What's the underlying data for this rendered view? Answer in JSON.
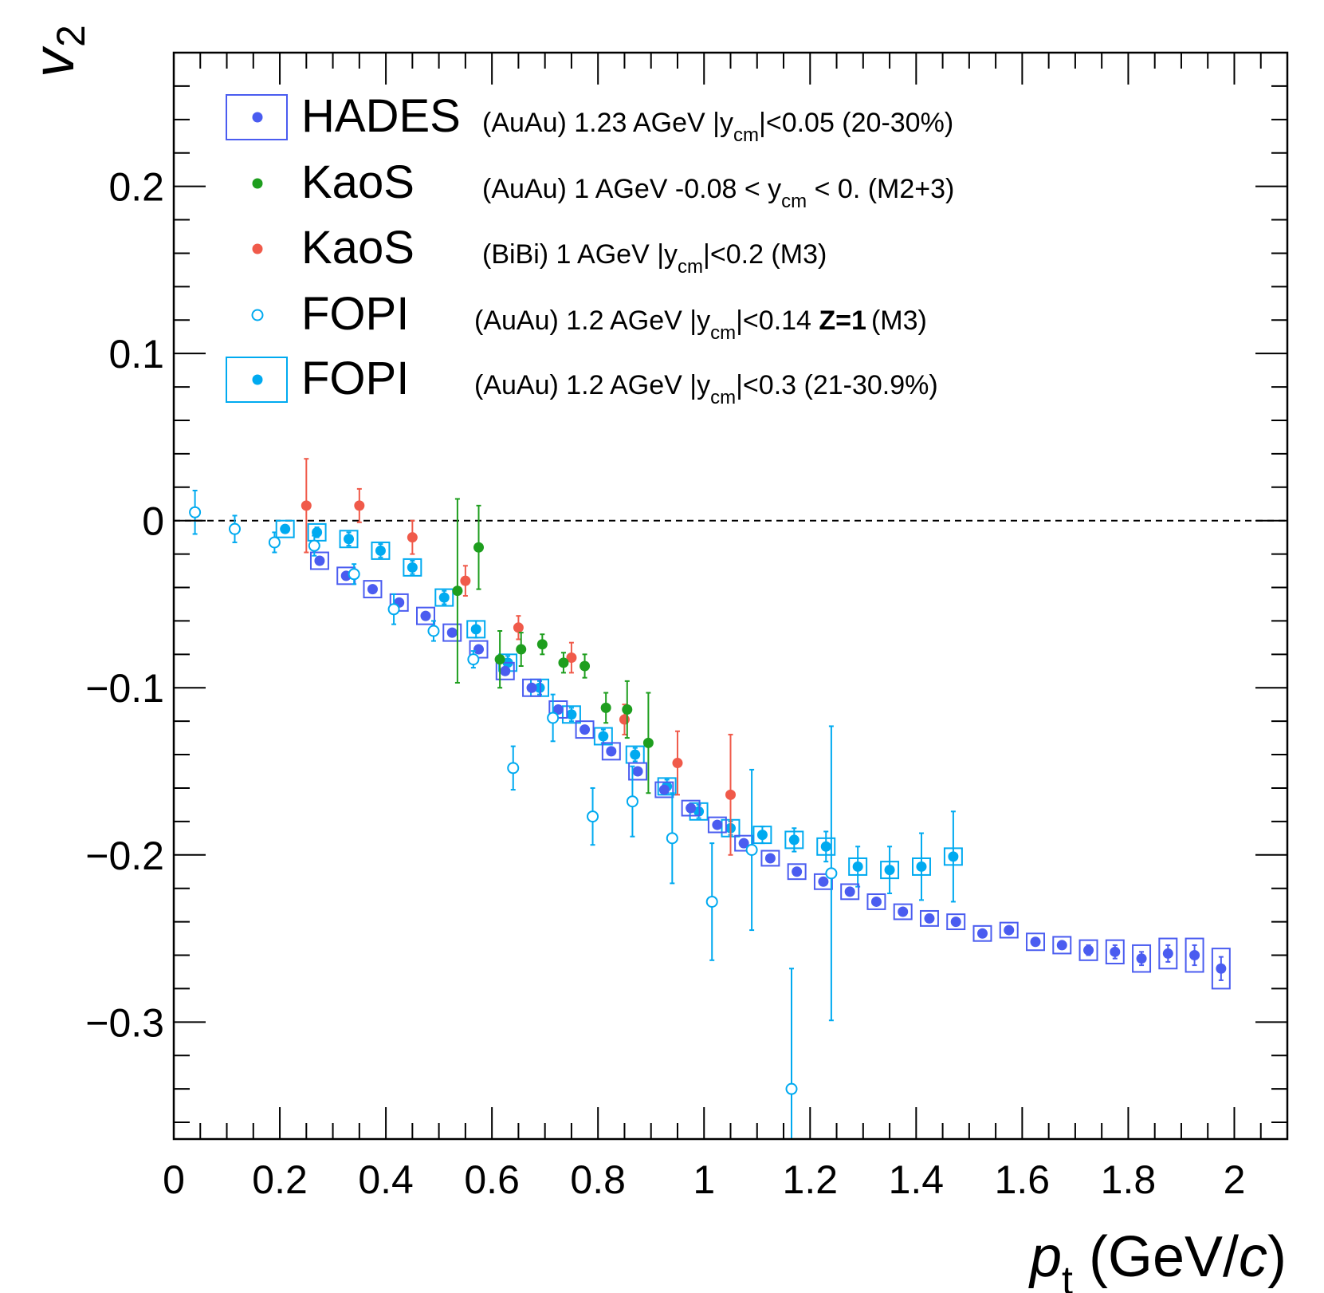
{
  "chart_data": {
    "type": "scatter",
    "xlabel_main": "p",
    "xlabel_sub": "t",
    "xlabel_unit_open": " (GeV/",
    "xlabel_unit_c": "c",
    "xlabel_unit_close": ")",
    "ylabel_main": "v",
    "ylabel_sub": "2",
    "xlim": [
      0,
      2.1
    ],
    "ylim": [
      -0.37,
      0.28
    ],
    "x_ticks": [
      0,
      0.2,
      0.4,
      0.6,
      0.8,
      1,
      1.2,
      1.4,
      1.6,
      1.8,
      2
    ],
    "x_tick_labels": [
      "0",
      "0.2",
      "0.4",
      "0.6",
      "0.8",
      "1",
      "1.2",
      "1.4",
      "1.6",
      "1.8",
      "2"
    ],
    "y_ticks": [
      0.2,
      0.1,
      0,
      -0.1,
      -0.2,
      -0.3
    ],
    "y_tick_labels": [
      "0.2",
      "0.1",
      "0",
      "−0.1",
      "−0.2",
      "−0.3"
    ],
    "zero_line": true,
    "colors": {
      "hades": "#4a5cf0",
      "kaos_auau": "#1e9e1e",
      "kaos_bibi": "#f05a4a",
      "fopi": "#00aaf0"
    },
    "legend": [
      {
        "name": "HADES",
        "desc": "(AuAu) 1.23 AGeV |y",
        "sub": "cm",
        "tail": "|<0.05 (20-30%)",
        "bold": "",
        "after": ""
      },
      {
        "name": "KaoS",
        "desc": "(AuAu) 1 AGeV  -0.08 < y",
        "sub": "cm",
        "tail": " < 0. (M2+3)",
        "bold": "",
        "after": ""
      },
      {
        "name": "KaoS",
        "desc": "(BiBi)   1 AGeV  |y",
        "sub": "cm",
        "tail": "|<0.2 (M3)",
        "bold": "",
        "after": ""
      },
      {
        "name": "FOPI",
        "desc": "(AuAu) 1.2 AGeV |y",
        "sub": "cm",
        "tail": "|<0.14 ",
        "bold": "Z=1",
        "after": "(M3)"
      },
      {
        "name": "FOPI",
        "desc": "(AuAu) 1.2 AGeV |y",
        "sub": "cm",
        "tail": "|<0.3 (21-30.9%)",
        "bold": "",
        "after": ""
      }
    ],
    "series": [
      {
        "name": "HADES (AuAu) 1.23 AGeV",
        "style": "filled-box",
        "color": "#4a5cf0",
        "points": [
          [
            0.275,
            -0.024,
            0.002,
            0.005
          ],
          [
            0.325,
            -0.033,
            0.002,
            0.005
          ],
          [
            0.375,
            -0.041,
            0.002,
            0.005
          ],
          [
            0.425,
            -0.049,
            0.002,
            0.005
          ],
          [
            0.475,
            -0.057,
            0.002,
            0.005
          ],
          [
            0.525,
            -0.067,
            0.002,
            0.005
          ],
          [
            0.575,
            -0.077,
            0.002,
            0.005
          ],
          [
            0.625,
            -0.09,
            0.002,
            0.005
          ],
          [
            0.675,
            -0.1,
            0.002,
            0.005
          ],
          [
            0.725,
            -0.113,
            0.002,
            0.005
          ],
          [
            0.775,
            -0.125,
            0.002,
            0.005
          ],
          [
            0.825,
            -0.138,
            0.002,
            0.005
          ],
          [
            0.875,
            -0.15,
            0.002,
            0.005
          ],
          [
            0.925,
            -0.161,
            0.002,
            0.004
          ],
          [
            0.975,
            -0.172,
            0.002,
            0.004
          ],
          [
            1.025,
            -0.182,
            0.002,
            0.004
          ],
          [
            1.075,
            -0.193,
            0.002,
            0.004
          ],
          [
            1.125,
            -0.202,
            0.002,
            0.004
          ],
          [
            1.175,
            -0.21,
            0.002,
            0.004
          ],
          [
            1.225,
            -0.216,
            0.002,
            0.004
          ],
          [
            1.275,
            -0.222,
            0.002,
            0.004
          ],
          [
            1.325,
            -0.228,
            0.002,
            0.004
          ],
          [
            1.375,
            -0.234,
            0.002,
            0.004
          ],
          [
            1.425,
            -0.238,
            0.002,
            0.004
          ],
          [
            1.475,
            -0.24,
            0.002,
            0.004
          ],
          [
            1.525,
            -0.247,
            0.002,
            0.004
          ],
          [
            1.575,
            -0.245,
            0.002,
            0.004
          ],
          [
            1.625,
            -0.252,
            0.002,
            0.005
          ],
          [
            1.675,
            -0.254,
            0.002,
            0.005
          ],
          [
            1.725,
            -0.257,
            0.003,
            0.006
          ],
          [
            1.775,
            -0.258,
            0.004,
            0.007
          ],
          [
            1.825,
            -0.262,
            0.004,
            0.008
          ],
          [
            1.875,
            -0.259,
            0.005,
            0.009
          ],
          [
            1.925,
            -0.26,
            0.006,
            0.01
          ],
          [
            1.975,
            -0.268,
            0.007,
            0.012
          ]
        ]
      },
      {
        "name": "KaoS (AuAu) 1 AGeV",
        "style": "filled",
        "color": "#1e9e1e",
        "points": [
          [
            0.535,
            -0.042,
            0.055
          ],
          [
            0.575,
            -0.016,
            0.025
          ],
          [
            0.615,
            -0.083,
            0.017
          ],
          [
            0.655,
            -0.077,
            0.01
          ],
          [
            0.695,
            -0.074,
            0.006
          ],
          [
            0.735,
            -0.085,
            0.006
          ],
          [
            0.775,
            -0.087,
            0.007
          ],
          [
            0.815,
            -0.112,
            0.009
          ],
          [
            0.855,
            -0.113,
            0.017
          ],
          [
            0.895,
            -0.133,
            0.03
          ]
        ]
      },
      {
        "name": "KaoS (BiBi) 1 AGeV",
        "style": "filled",
        "color": "#f05a4a",
        "points": [
          [
            0.25,
            0.009,
            0.028
          ],
          [
            0.35,
            0.009,
            0.01
          ],
          [
            0.45,
            -0.01,
            0.01
          ],
          [
            0.55,
            -0.036,
            0.009
          ],
          [
            0.65,
            -0.064,
            0.007
          ],
          [
            0.75,
            -0.082,
            0.009
          ],
          [
            0.85,
            -0.119,
            0.009
          ],
          [
            0.95,
            -0.145,
            0.019
          ],
          [
            1.05,
            -0.164,
            0.036
          ]
        ]
      },
      {
        "name": "FOPI (AuAu) 1.2 AGeV Z=1",
        "style": "open",
        "color": "#00aaf0",
        "points": [
          [
            0.04,
            0.005,
            0.013
          ],
          [
            0.115,
            -0.005,
            0.008
          ],
          [
            0.19,
            -0.013,
            0.006
          ],
          [
            0.265,
            -0.015,
            0.006
          ],
          [
            0.34,
            -0.032,
            0.006
          ],
          [
            0.415,
            -0.053,
            0.009
          ],
          [
            0.49,
            -0.066,
            0.006
          ],
          [
            0.565,
            -0.083,
            0.005
          ],
          [
            0.64,
            -0.148,
            0.013
          ],
          [
            0.715,
            -0.118,
            0.014
          ],
          [
            0.79,
            -0.177,
            0.017
          ],
          [
            0.865,
            -0.168,
            0.021
          ],
          [
            0.94,
            -0.19,
            0.027
          ],
          [
            1.015,
            -0.228,
            0.035
          ],
          [
            1.09,
            -0.197,
            0.048
          ],
          [
            1.165,
            -0.34,
            0.072
          ],
          [
            1.24,
            -0.211,
            0.088
          ]
        ]
      },
      {
        "name": "FOPI (AuAu) 1.2 AGeV 21-30.9%",
        "style": "filled-box",
        "color": "#00aaf0",
        "points": [
          [
            0.21,
            -0.005,
            0.002,
            0.005
          ],
          [
            0.27,
            -0.007,
            0.003,
            0.005
          ],
          [
            0.33,
            -0.011,
            0.004,
            0.005
          ],
          [
            0.39,
            -0.018,
            0.004,
            0.005
          ],
          [
            0.45,
            -0.028,
            0.004,
            0.005
          ],
          [
            0.51,
            -0.046,
            0.004,
            0.005
          ],
          [
            0.57,
            -0.065,
            0.005,
            0.005
          ],
          [
            0.63,
            -0.085,
            0.004,
            0.005
          ],
          [
            0.69,
            -0.1,
            0.004,
            0.005
          ],
          [
            0.75,
            -0.116,
            0.004,
            0.005
          ],
          [
            0.81,
            -0.129,
            0.004,
            0.005
          ],
          [
            0.87,
            -0.14,
            0.004,
            0.005
          ],
          [
            0.93,
            -0.159,
            0.004,
            0.005
          ],
          [
            0.99,
            -0.174,
            0.004,
            0.005
          ],
          [
            1.05,
            -0.184,
            0.004,
            0.005
          ],
          [
            1.11,
            -0.188,
            0.005,
            0.005
          ],
          [
            1.17,
            -0.191,
            0.007,
            0.005
          ],
          [
            1.23,
            -0.195,
            0.009,
            0.005
          ],
          [
            1.29,
            -0.207,
            0.012,
            0.005
          ],
          [
            1.35,
            -0.209,
            0.014,
            0.005
          ],
          [
            1.41,
            -0.207,
            0.02,
            0.005
          ],
          [
            1.47,
            -0.201,
            0.027,
            0.005
          ]
        ]
      }
    ]
  }
}
